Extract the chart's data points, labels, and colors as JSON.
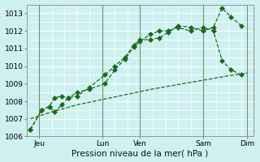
{
  "title": "",
  "xlabel": "Pression niveau de la mer( hPa )",
  "bg_color": "#cff0f0",
  "grid_major_color": "#ffffff",
  "grid_minor_color": "#daf5f5",
  "line_color": "#1a6b1a",
  "ylim": [
    1006,
    1013.5
  ],
  "xlim": [
    0,
    18
  ],
  "yticks": [
    1006,
    1007,
    1008,
    1009,
    1010,
    1011,
    1012,
    1013
  ],
  "xtick_positions": [
    1,
    6,
    9,
    14,
    17.5
  ],
  "xtick_labels": [
    "Jeu",
    "Lun",
    "Ven",
    "Sam",
    "Dim"
  ],
  "vline_positions": [
    1,
    6,
    9,
    14,
    17.5
  ],
  "series1_x": [
    0.3,
    1.2,
    1.8,
    2.2,
    2.8,
    3.3,
    4.0,
    5.0,
    6.2,
    7.0,
    7.8,
    8.5,
    9.0,
    9.8,
    10.5,
    11.2,
    12.0,
    13.0,
    14.0,
    14.8,
    15.5,
    16.2,
    17.0
  ],
  "series1_y": [
    1006.4,
    1007.5,
    1007.7,
    1007.4,
    1007.8,
    1008.2,
    1008.3,
    1008.8,
    1009.5,
    1010.0,
    1010.5,
    1011.2,
    1011.5,
    1011.5,
    1011.6,
    1011.9,
    1012.3,
    1012.2,
    1012.0,
    1012.2,
    1013.3,
    1012.8,
    1012.3
  ],
  "series2_x": [
    0.3,
    1.2,
    1.8,
    2.2,
    2.8,
    3.3,
    4.0,
    5.0,
    6.2,
    7.0,
    7.8,
    8.5,
    9.0,
    9.8,
    10.5,
    11.2,
    12.0,
    13.0,
    14.0,
    14.8,
    15.5,
    16.2,
    17.0
  ],
  "series2_y": [
    1006.4,
    1007.5,
    1007.7,
    1008.2,
    1008.3,
    1008.2,
    1008.5,
    1008.7,
    1009.0,
    1009.8,
    1010.4,
    1011.1,
    1011.4,
    1011.8,
    1012.0,
    1012.0,
    1012.2,
    1012.0,
    1012.2,
    1012.0,
    1010.3,
    1009.8,
    1009.5
  ],
  "series3_x": [
    0.3,
    2.0,
    4.0,
    6.0,
    8.0,
    10.0,
    12.0,
    14.0,
    16.0,
    17.5
  ],
  "series3_y": [
    1007.0,
    1007.4,
    1007.8,
    1008.1,
    1008.4,
    1008.7,
    1008.95,
    1009.2,
    1009.45,
    1009.6
  ],
  "fontsize_xlabel": 7.5,
  "fontsize_tick": 6.5
}
